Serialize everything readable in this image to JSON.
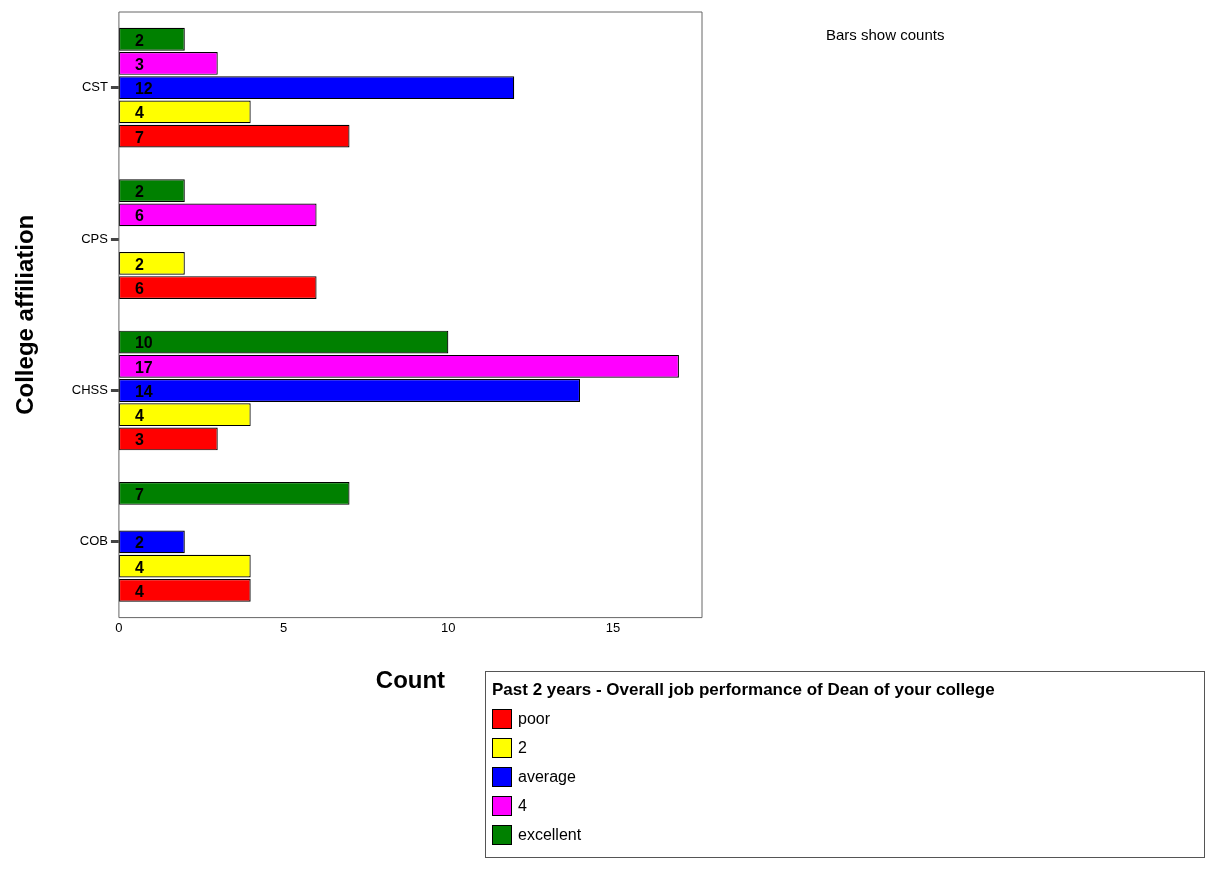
{
  "chart_data": {
    "type": "bar",
    "orientation": "horizontal",
    "xlabel": "Count",
    "ylabel": "College affiliation",
    "legend_title": "Past 2 years - Overall job performance of Dean of your college",
    "legend": "bottom right",
    "annotations": [
      "Bars show counts"
    ],
    "categories": [
      "CST",
      "CPS",
      "CHSS",
      "COB"
    ],
    "series": [
      {
        "name": "poor",
        "color": "#ff0000",
        "values": [
          7,
          6,
          3,
          4
        ]
      },
      {
        "name": "2",
        "color": "#ffff00",
        "values": [
          4,
          2,
          4,
          4
        ]
      },
      {
        "name": "average",
        "color": "#0000ff",
        "values": [
          12,
          null,
          14,
          2
        ]
      },
      {
        "name": "4",
        "color": "#ff00ff",
        "values": [
          3,
          6,
          17,
          null
        ]
      },
      {
        "name": "excellent",
        "color": "#008000",
        "values": [
          2,
          2,
          10,
          7
        ]
      }
    ],
    "xlim": [
      0,
      17.7
    ],
    "xticks": [
      0,
      5,
      10,
      15
    ],
    "grid": false,
    "data_labels": true
  }
}
